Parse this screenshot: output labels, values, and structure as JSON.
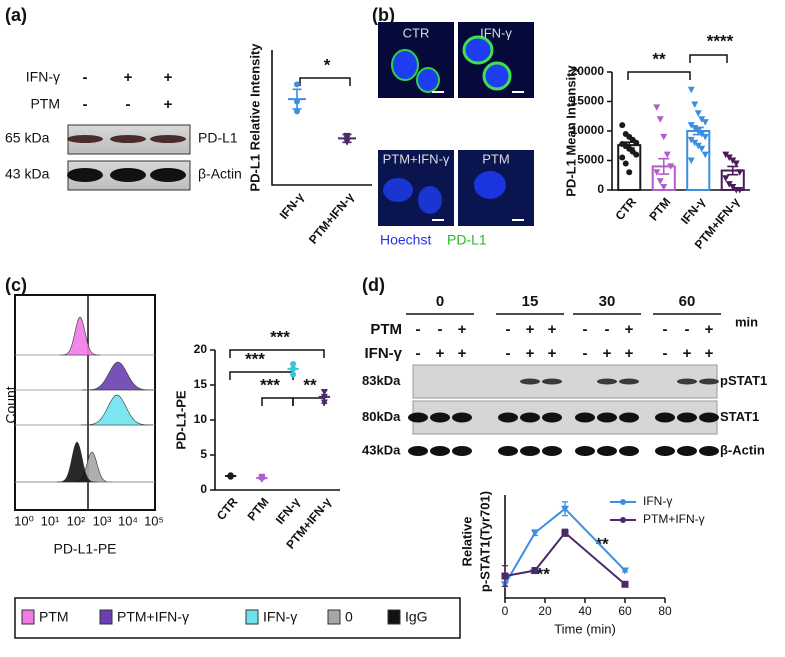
{
  "panel_labels": [
    "(a)",
    "(b)",
    "(c)",
    "(d)"
  ],
  "blot_a": {
    "rows": [
      {
        "label": "IFN-γ",
        "signs": [
          "-",
          "+",
          "+"
        ]
      },
      {
        "label": "PTM",
        "signs": [
          "-",
          "-",
          "+"
        ]
      }
    ],
    "bands": [
      {
        "size": "65 kDa",
        "protein": "PD-L1"
      },
      {
        "size": "43 kDa",
        "protein": "β-Actin"
      }
    ]
  },
  "micro_b": {
    "images": [
      "CTR",
      "IFN-γ",
      "PTM+IFN-γ",
      "PTM"
    ],
    "stains": [
      "Hoechst",
      "PD-L1"
    ]
  },
  "flow_c": {
    "y_label": "Count",
    "x_label": "PD-L1-PE",
    "x_tick_labels": [
      "10⁰",
      "10¹",
      "10²",
      "10³",
      "10⁴",
      "10⁵"
    ],
    "legend": [
      {
        "name": "PTM",
        "color": "#f07ae6"
      },
      {
        "name": "PTM+IFN-γ",
        "color": "#6a3fb0"
      },
      {
        "name": "IFN-γ",
        "color": "#6de3ee"
      },
      {
        "name": "0",
        "color": "#a6a6a6"
      },
      {
        "name": "IgG",
        "color": "#111111"
      }
    ]
  },
  "blot_d": {
    "times": [
      "0",
      "15",
      "30",
      "60"
    ],
    "time_unit": "min",
    "rows": [
      {
        "label": "PTM",
        "signs": [
          "-",
          "-",
          "+",
          "-",
          "+",
          "+",
          "-",
          "-",
          "+",
          "-",
          "-",
          "+"
        ]
      },
      {
        "label": "IFN-γ",
        "signs": [
          "-",
          "+",
          "+",
          "-",
          "+",
          "+",
          "-",
          "+",
          "+",
          "-",
          "+",
          "+"
        ]
      }
    ],
    "bands": [
      {
        "size": "83kDa",
        "protein": "pSTAT1"
      },
      {
        "size": "80kDa",
        "protein": "STAT1"
      },
      {
        "size": "43kDa",
        "protein": "β-Actin"
      }
    ]
  },
  "chart_data": [
    {
      "type": "dot",
      "y_label": "PD-L1 Relative Intensity",
      "categories": [
        "IFN-γ",
        "PTM+IFN-γ"
      ],
      "colors": [
        "#3b8ee0",
        "#4a2a6a"
      ],
      "values": [
        1.75,
        0.95
      ],
      "errors": [
        0.2,
        0.08
      ],
      "points": [
        [
          2.05,
          1.7,
          1.5
        ],
        [
          1.0,
          0.95,
          0.87
        ]
      ],
      "ylim": [
        0,
        2.75
      ],
      "annotations": [
        "*"
      ]
    },
    {
      "type": "bar",
      "y_label": "PD-L1 Mean Intensity",
      "categories": [
        "CTR",
        "PTM",
        "IFN-γ",
        "PTM+IFN-γ"
      ],
      "colors": [
        "#1a1a1a",
        "#b35ccc",
        "#3b8ee0",
        "#4a1a5a"
      ],
      "values": [
        7600,
        4000,
        10000,
        3300
      ],
      "errors": [
        500,
        1300,
        600,
        700
      ],
      "points": [
        [
          11000,
          9500,
          9000,
          8500,
          8000,
          7800,
          7500,
          7000,
          6500,
          6000,
          5500,
          4500,
          3000
        ],
        [
          14000,
          12000,
          9000,
          6000,
          4000,
          3000,
          1500,
          500
        ],
        [
          17000,
          14500,
          13000,
          12000,
          11500,
          11000,
          10500,
          10000,
          9500,
          9000,
          8500,
          8000,
          7500,
          7000,
          6000,
          5000
        ],
        [
          6000,
          5500,
          5000,
          4500,
          3000,
          2000,
          1000,
          500,
          0,
          0
        ]
      ],
      "ylim": [
        0,
        20000
      ],
      "yticks": [
        0,
        5000,
        10000,
        15000,
        20000
      ],
      "annotations": [
        "**",
        "****"
      ]
    },
    {
      "type": "dot",
      "y_label": "PD-L1-PE",
      "categories": [
        "CTR",
        "PTM",
        "IFN-γ",
        "PTM+IFN-γ"
      ],
      "colors": [
        "#1a1a1a",
        "#b35ccc",
        "#35c8d8",
        "#4a2a6a"
      ],
      "values": [
        2,
        1.7,
        17.3,
        13.3
      ],
      "errors": [
        0.15,
        0.2,
        0.8,
        0.9
      ],
      "points": [
        [
          1.9,
          2,
          2.1
        ],
        [
          1.5,
          1.7,
          1.9
        ],
        [
          16.5,
          17.3,
          18
        ],
        [
          12.5,
          13.3,
          14
        ]
      ],
      "ylim": [
        0,
        20
      ],
      "yticks": [
        0,
        5,
        10,
        15,
        20
      ],
      "annotations": [
        "***",
        "***",
        "***",
        "**"
      ]
    },
    {
      "type": "line",
      "y_label": [
        "Relative",
        "p-STAT1(Tyr701)"
      ],
      "x_label": "Time (min)",
      "x": [
        0,
        15,
        30,
        60
      ],
      "xlim": [
        0,
        80
      ],
      "xticks": [
        0,
        20,
        40,
        60,
        80
      ],
      "ylim": [
        0,
        15
      ],
      "series": [
        {
          "name": "IFN-γ",
          "color": "#3b8ee0",
          "values": [
            2,
            9.5,
            13,
            4
          ],
          "errors": [
            0.3,
            0.4,
            1,
            0.2
          ]
        },
        {
          "name": "PTM+IFN-γ",
          "color": "#4a2a6a",
          "values": [
            3.2,
            4,
            9.5,
            2
          ],
          "errors": [
            1.5,
            0.3,
            0.5,
            0.2
          ]
        }
      ],
      "annotations": [
        "***",
        "**"
      ]
    }
  ]
}
